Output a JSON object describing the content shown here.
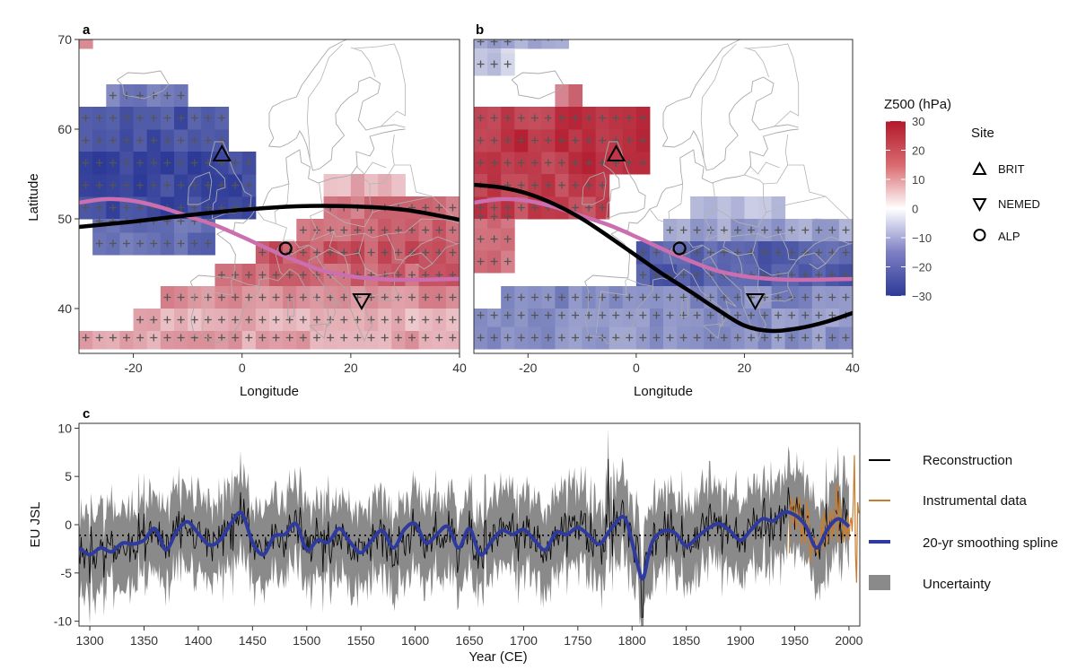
{
  "chart_data": [
    {
      "id": "a",
      "type": "heatmap",
      "panel_label": "a",
      "xlabel": "Longitude",
      "ylabel": "Latitude",
      "xlim": [
        -30,
        40
      ],
      "ylim": [
        35,
        70
      ],
      "xticks": [
        -20,
        0,
        20,
        40
      ],
      "yticks": [
        40,
        50,
        60,
        70
      ],
      "field": "Z500 anomaly, tiled 2.5° grid; + marks significant cells",
      "regions": [
        {
          "lon": [
            -30,
            -27.5
          ],
          "lat": [
            69,
            71
          ],
          "value": 18,
          "signif": false
        },
        {
          "lon": [
            -25,
            -10
          ],
          "lat": [
            62.5,
            65
          ],
          "value": -20,
          "signif": true
        },
        {
          "lon": [
            -30,
            -2.5
          ],
          "lat": [
            57.5,
            62.5
          ],
          "value": -26,
          "signif": true
        },
        {
          "lon": [
            -30,
            2.5
          ],
          "lat": [
            50,
            57.5
          ],
          "value": -28,
          "signif": true
        },
        {
          "lon": [
            -27.5,
            -5
          ],
          "lat": [
            46,
            50
          ],
          "value": -22,
          "signif": true
        },
        {
          "lon": [
            15,
            30
          ],
          "lat": [
            52.5,
            55
          ],
          "value": 10,
          "signif": false
        },
        {
          "lon": [
            15,
            40
          ],
          "lat": [
            50,
            52.5
          ],
          "value": 18,
          "signif": true
        },
        {
          "lon": [
            10,
            40
          ],
          "lat": [
            47.5,
            50
          ],
          "value": 20,
          "signif": true
        },
        {
          "lon": [
            2.5,
            40
          ],
          "lat": [
            45,
            47.5
          ],
          "value": 22,
          "signif": true
        },
        {
          "lon": [
            -5,
            40
          ],
          "lat": [
            42.5,
            45
          ],
          "value": 20,
          "signif": true
        },
        {
          "lon": [
            -15,
            40
          ],
          "lat": [
            40,
            42.5
          ],
          "value": 14,
          "signif": true
        },
        {
          "lon": [
            -20,
            40
          ],
          "lat": [
            37.5,
            40
          ],
          "value": 10,
          "signif": true
        },
        {
          "lon": [
            -30,
            40
          ],
          "lat": [
            35.5,
            37.5
          ],
          "value": 12,
          "signif": true
        }
      ],
      "lines": [
        {
          "name": "black",
          "color": "#000000",
          "x": [
            -30,
            -20,
            -10,
            0,
            10,
            20,
            30,
            40
          ],
          "y": [
            49.1,
            49.7,
            50.4,
            51.0,
            51.4,
            51.4,
            51.0,
            49.9
          ]
        },
        {
          "name": "pink",
          "color": "#cc6fb0",
          "x": [
            -30,
            -25,
            -20,
            -15,
            -10,
            -5,
            0,
            5,
            10,
            15,
            20,
            25,
            30,
            40
          ],
          "y": [
            51.8,
            52.2,
            52.0,
            51.3,
            50.3,
            49.3,
            48.0,
            46.6,
            45.3,
            44.2,
            43.6,
            43.3,
            43.2,
            43.3
          ]
        }
      ],
      "sites": [
        {
          "name": "BRIT",
          "lon": -3.7,
          "lat": 57.3,
          "marker": "triangle-up"
        },
        {
          "name": "NEMED",
          "lon": 22,
          "lat": 40.8,
          "marker": "triangle-down"
        },
        {
          "name": "ALP",
          "lon": 8,
          "lat": 46.7,
          "marker": "circle"
        }
      ]
    },
    {
      "id": "b",
      "type": "heatmap",
      "panel_label": "b",
      "xlabel": "Longitude",
      "ylabel": "",
      "xlim": [
        -30,
        40
      ],
      "ylim": [
        35,
        70
      ],
      "xticks": [
        -20,
        0,
        20,
        40
      ],
      "yticks": [],
      "field": "Z500 anomaly, tiled 2.5° grid; + marks significant cells",
      "regions": [
        {
          "lon": [
            -30,
            -12.5
          ],
          "lat": [
            69,
            71
          ],
          "value": -14,
          "signif": true
        },
        {
          "lon": [
            -30,
            -22.5
          ],
          "lat": [
            66,
            69
          ],
          "value": -8,
          "signif": true
        },
        {
          "lon": [
            -15,
            -10
          ],
          "lat": [
            62.5,
            65
          ],
          "value": 18,
          "signif": false
        },
        {
          "lon": [
            -30,
            2.5
          ],
          "lat": [
            55,
            62.5
          ],
          "value": 26,
          "signif": true
        },
        {
          "lon": [
            -30,
            -5
          ],
          "lat": [
            50,
            55
          ],
          "value": 24,
          "signif": true
        },
        {
          "lon": [
            -30,
            -22.5
          ],
          "lat": [
            44,
            50
          ],
          "value": 18,
          "signif": true
        },
        {
          "lon": [
            10,
            27.5
          ],
          "lat": [
            50,
            52.5
          ],
          "value": -10,
          "signif": false
        },
        {
          "lon": [
            5,
            40
          ],
          "lat": [
            47.5,
            50
          ],
          "value": -14,
          "signif": true
        },
        {
          "lon": [
            0,
            40
          ],
          "lat": [
            42.5,
            47.5
          ],
          "value": -24,
          "signif": true
        },
        {
          "lon": [
            -25,
            40
          ],
          "lat": [
            40,
            42.5
          ],
          "value": -18,
          "signif": true
        },
        {
          "lon": [
            -30,
            40
          ],
          "lat": [
            35.5,
            40
          ],
          "value": -16,
          "signif": true
        }
      ],
      "lines": [
        {
          "name": "black",
          "color": "#000000",
          "x": [
            -30,
            -25,
            -20,
            -15,
            -10,
            -5,
            0,
            5,
            10,
            15,
            20,
            25,
            30,
            35,
            40
          ],
          "y": [
            53.8,
            53.5,
            52.8,
            51.6,
            50.0,
            48.0,
            45.9,
            43.8,
            41.9,
            39.9,
            38.1,
            37.5,
            37.8,
            38.5,
            39.5
          ]
        },
        {
          "name": "pink",
          "color": "#cc6fb0",
          "x": [
            -30,
            -25,
            -20,
            -15,
            -10,
            -5,
            0,
            5,
            10,
            15,
            20,
            25,
            30,
            40
          ],
          "y": [
            51.8,
            52.2,
            52.0,
            51.3,
            50.3,
            49.3,
            48.0,
            46.6,
            45.3,
            44.2,
            43.6,
            43.3,
            43.2,
            43.3
          ]
        }
      ],
      "sites": [
        {
          "name": "BRIT",
          "lon": -3.7,
          "lat": 57.3,
          "marker": "triangle-up"
        },
        {
          "name": "NEMED",
          "lon": 22,
          "lat": 40.8,
          "marker": "triangle-down"
        },
        {
          "name": "ALP",
          "lon": 8,
          "lat": 46.7,
          "marker": "circle"
        }
      ]
    },
    {
      "id": "c",
      "type": "line",
      "panel_label": "c",
      "xlabel": "Year (CE)",
      "ylabel": "EU  JSL",
      "xlim": [
        1290,
        2010
      ],
      "ylim": [
        -10.5,
        10.5
      ],
      "xticks": [
        1300,
        1350,
        1400,
        1450,
        1500,
        1550,
        1600,
        1650,
        1700,
        1750,
        1800,
        1850,
        1900,
        1950,
        2000
      ],
      "yticks": [
        -10,
        -5,
        0,
        5,
        10
      ],
      "mean_line": -1.1,
      "series": [
        {
          "name": "20-yr smoothing spline",
          "color": "#2e3a9e",
          "x": [
            1290,
            1300,
            1310,
            1320,
            1330,
            1340,
            1350,
            1360,
            1370,
            1380,
            1390,
            1400,
            1410,
            1420,
            1430,
            1440,
            1450,
            1460,
            1470,
            1480,
            1490,
            1500,
            1510,
            1520,
            1530,
            1540,
            1550,
            1560,
            1570,
            1580,
            1590,
            1600,
            1610,
            1620,
            1630,
            1640,
            1650,
            1660,
            1670,
            1680,
            1690,
            1700,
            1710,
            1720,
            1730,
            1740,
            1750,
            1760,
            1770,
            1780,
            1790,
            1795,
            1800,
            1805,
            1810,
            1815,
            1820,
            1830,
            1840,
            1850,
            1860,
            1870,
            1880,
            1890,
            1900,
            1910,
            1920,
            1930,
            1940,
            1950,
            1960,
            1970,
            1980,
            1990,
            2000
          ],
          "y": [
            -2.4,
            -3.1,
            -2.4,
            -2.8,
            -1.9,
            -2.0,
            -1.6,
            -0.4,
            -2.6,
            -0.7,
            0.3,
            -0.9,
            -2.1,
            -1.6,
            0.1,
            1.2,
            -1.8,
            -3.1,
            -1.2,
            -1.0,
            0.1,
            -2.6,
            -1.6,
            -1.8,
            -0.4,
            -1.8,
            -2.9,
            -1.6,
            -0.6,
            -2.4,
            -0.5,
            0.1,
            -1.9,
            -1.0,
            -0.2,
            -2.4,
            -0.4,
            -3.1,
            -1.8,
            -0.6,
            -1.0,
            -0.5,
            -1.6,
            -2.6,
            -0.8,
            -1.0,
            -0.3,
            -1.1,
            -2.0,
            -0.5,
            0.8,
            0.3,
            -1.8,
            -4.1,
            -5.6,
            -3.2,
            -1.5,
            -0.6,
            -0.9,
            -2.2,
            -1.3,
            -0.4,
            0.1,
            -0.6,
            -1.6,
            -0.5,
            0.6,
            0.4,
            1.3,
            1.0,
            -0.1,
            -2.4,
            -0.5,
            0.6,
            -0.2
          ]
        },
        {
          "name": "Reconstruction",
          "color": "#000000",
          "summary": "annual values scattered around the smoothing spline (±3)"
        },
        {
          "name": "Instrumental data",
          "color": "#c87d2e",
          "x_range": [
            1945,
            2010
          ]
        },
        {
          "name": "Uncertainty",
          "color": "#8a8a8a",
          "summary": "grey band of roughly ±4 around annual values"
        }
      ]
    }
  ],
  "legend_map": {
    "title": "Z500 (hPa)",
    "ticks": [
      "30",
      "20",
      "10",
      "0",
      "−10",
      "−20",
      "−30"
    ],
    "colors": {
      "pos": "#b2182b",
      "neg": "#2d3a97",
      "mid": "#ffffff"
    }
  },
  "legend_site": {
    "title": "Site",
    "items": [
      "BRIT",
      "NEMED",
      "ALP"
    ]
  },
  "legend_series": {
    "items": [
      "Reconstruction",
      "Instrumental data",
      "20-yr smoothing spline",
      "Uncertainty"
    ]
  }
}
